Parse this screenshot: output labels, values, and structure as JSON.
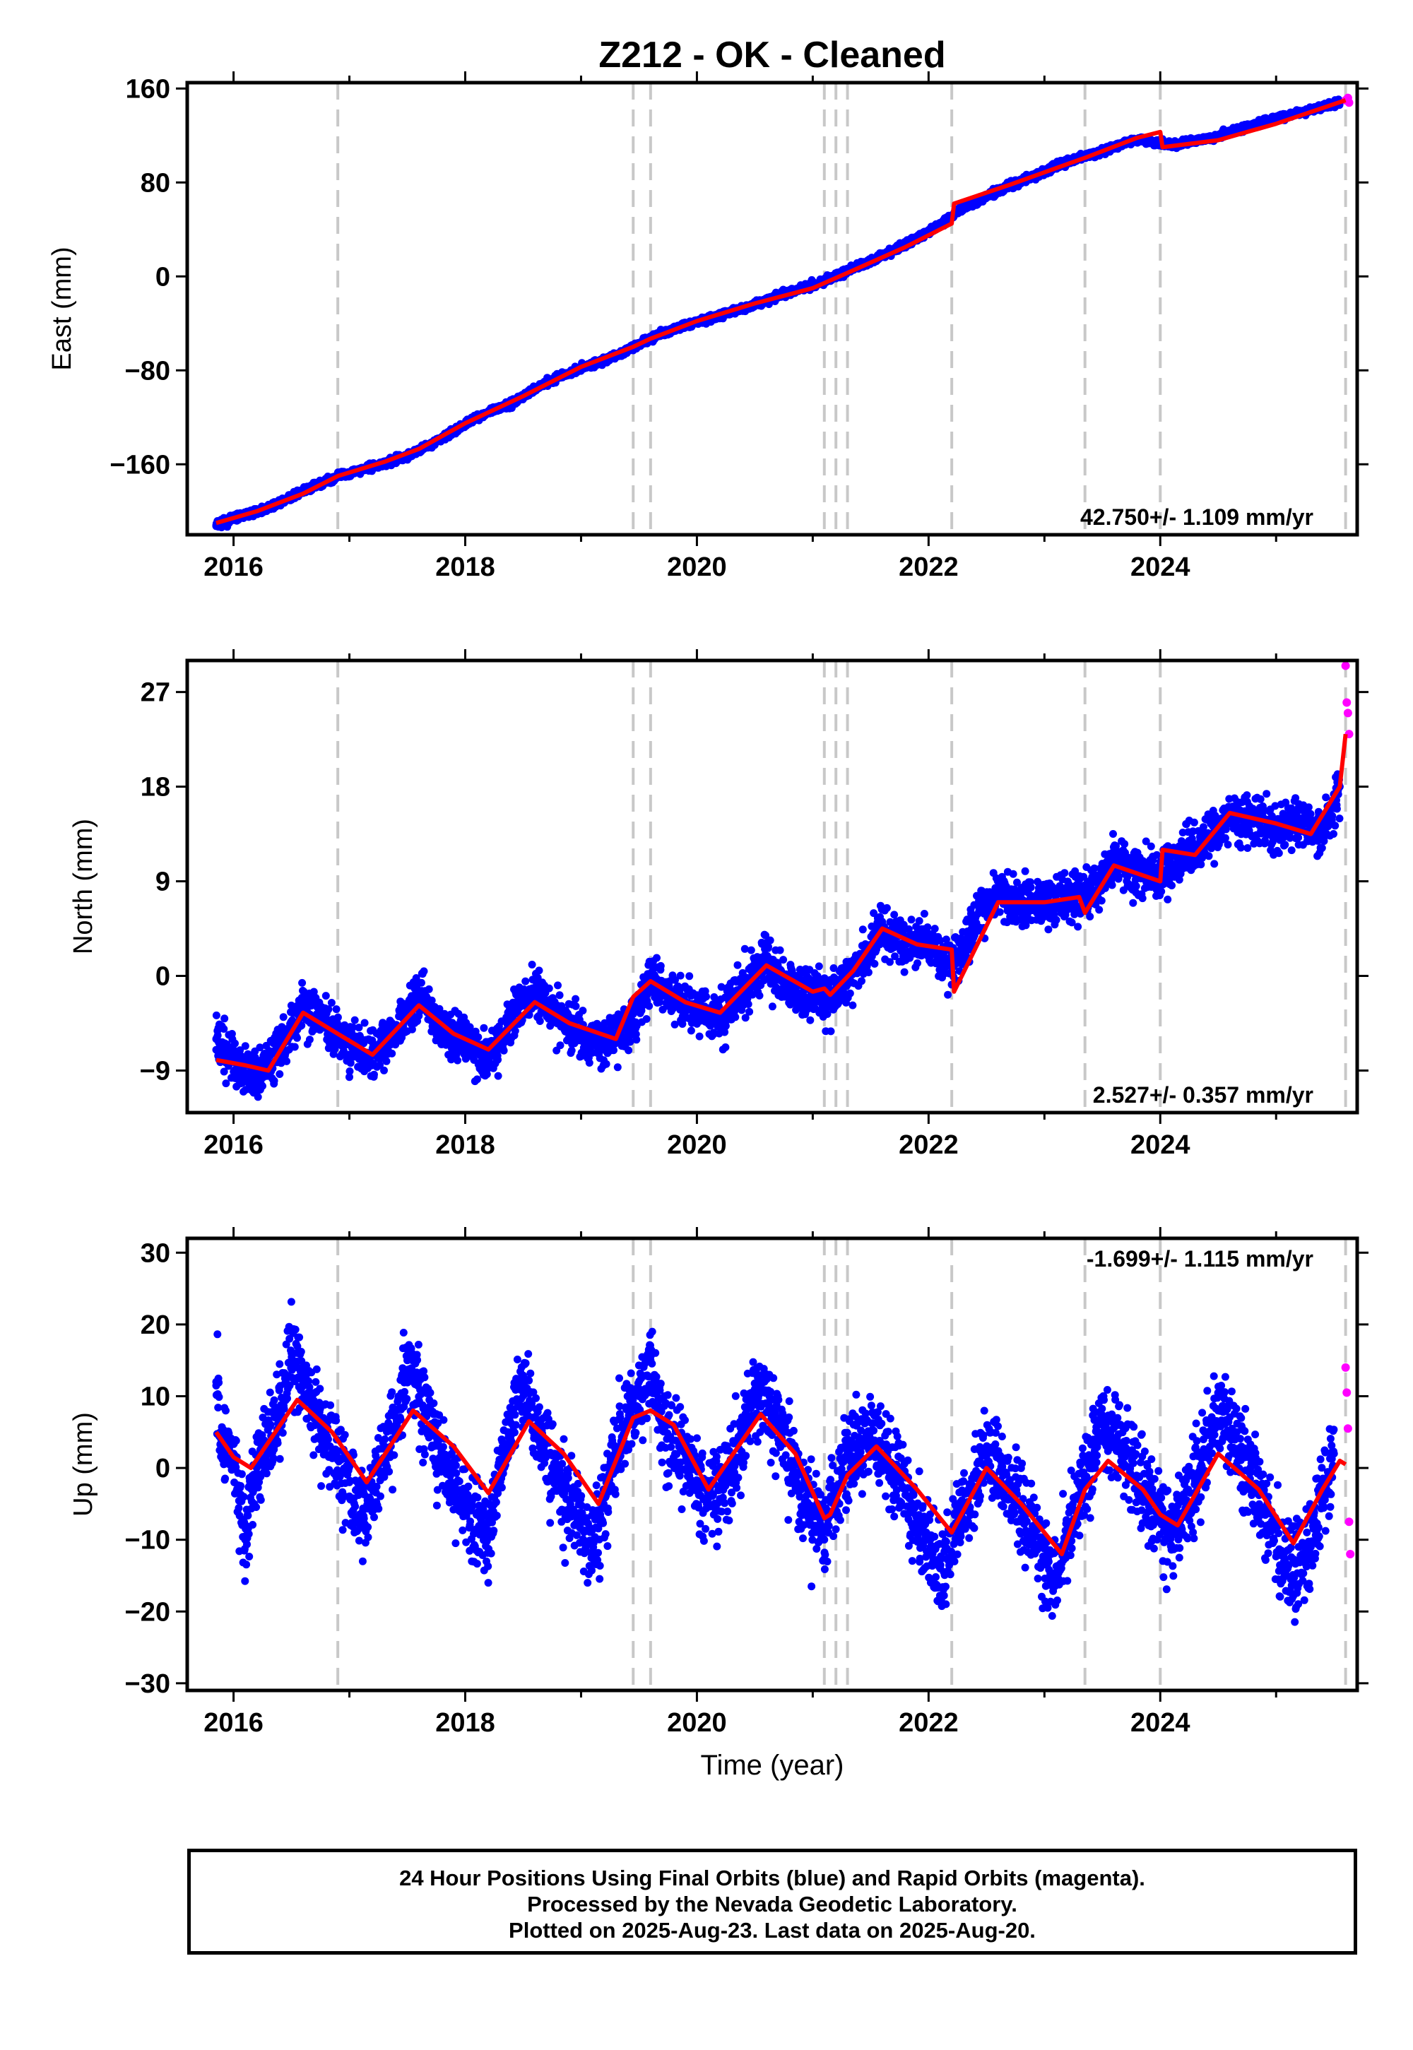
{
  "title": "Z212  - OK - Cleaned",
  "xlabel": "Time (year)",
  "caption": {
    "line1": "24 Hour Positions Using Final Orbits (blue) and Rapid Orbits (magenta).",
    "line2": "Processed by the Nevada Geodetic Laboratory.",
    "line3": "Plotted on 2025-Aug-23. Last data on 2025-Aug-20."
  },
  "colors": {
    "final": "#0000ff",
    "rapid": "#ff00ff",
    "model": "#ff0000",
    "steps": "#c8c8c8",
    "frame": "#000000"
  },
  "chart_data": [
    {
      "type": "scatter",
      "panel": "east",
      "ylabel": "East (mm)",
      "rate_label": "42.750+/- 1.109 mm/yr",
      "xlim": [
        2015.6,
        2025.7
      ],
      "ylim": [
        -220,
        165
      ],
      "yticks": [
        -160,
        -80,
        0,
        80,
        160
      ],
      "yticklabels": [
        "−160",
        "−80",
        "0",
        "80",
        "160"
      ],
      "xticks": [
        2016,
        2018,
        2020,
        2022,
        2024
      ],
      "xticklabels": [
        "2016",
        "2018",
        "2020",
        "2022",
        "2024"
      ],
      "equipment_changes": [
        2016.9,
        2019.45,
        2019.6,
        2021.1,
        2021.2,
        2021.3,
        2022.2,
        2023.35,
        2024.0,
        2025.6
      ],
      "model": {
        "x": [
          2015.85,
          2016.2,
          2016.6,
          2016.9,
          2017.3,
          2017.6,
          2018.0,
          2018.5,
          2019.0,
          2019.45,
          2019.6,
          2020.0,
          2020.5,
          2021.0,
          2021.3,
          2021.8,
          2022.2,
          2022.22,
          2022.7,
          2023.35,
          2023.8,
          2024.0,
          2024.02,
          2024.5,
          2025.0,
          2025.6
        ],
        "y": [
          -210,
          -200,
          -185,
          -170,
          -158,
          -147,
          -125,
          -102,
          -77,
          -60,
          -53,
          -38,
          -23,
          -10,
          3,
          25,
          45,
          62,
          78,
          101,
          118,
          123,
          110,
          116,
          130,
          150
        ]
      },
      "final": {
        "x": [
          2015.85,
          2016.0,
          2016.3,
          2016.6,
          2016.9,
          2017.2,
          2017.5,
          2017.8,
          2018.1,
          2018.4,
          2018.7,
          2019.0,
          2019.3,
          2019.6,
          2019.9,
          2020.2,
          2020.5,
          2020.8,
          2021.1,
          2021.4,
          2021.7,
          2022.0,
          2022.3,
          2022.6,
          2022.9,
          2023.2,
          2023.5,
          2023.8,
          2024.1,
          2024.4,
          2024.7,
          2025.0,
          2025.3,
          2025.55
        ],
        "y": [
          -212,
          -206,
          -197,
          -183,
          -170,
          -162,
          -153,
          -138,
          -120,
          -108,
          -90,
          -78,
          -68,
          -52,
          -42,
          -33,
          -24,
          -13,
          -4,
          9,
          22,
          38,
          58,
          73,
          85,
          98,
          107,
          117,
          112,
          117,
          126,
          135,
          142,
          148
        ]
      },
      "rapid": {
        "x": [
          2025.6,
          2025.62,
          2025.63
        ],
        "y": [
          150,
          152,
          148
        ]
      }
    },
    {
      "type": "scatter",
      "panel": "north",
      "ylabel": "North (mm)",
      "rate_label": "2.527+/- 0.357 mm/yr",
      "xlim": [
        2015.6,
        2025.7
      ],
      "ylim": [
        -13,
        30
      ],
      "yticks": [
        -9,
        0,
        9,
        18,
        27
      ],
      "yticklabels": [
        "−9",
        "0",
        "9",
        "18",
        "27"
      ],
      "xticks": [
        2016,
        2018,
        2020,
        2022,
        2024
      ],
      "xticklabels": [
        "2016",
        "2018",
        "2020",
        "2022",
        "2024"
      ],
      "equipment_changes": [
        2016.9,
        2019.45,
        2019.6,
        2021.1,
        2021.2,
        2021.3,
        2022.2,
        2023.35,
        2024.0,
        2025.6
      ],
      "model": {
        "x": [
          2015.85,
          2016.1,
          2016.3,
          2016.6,
          2016.9,
          2017.2,
          2017.6,
          2017.9,
          2018.2,
          2018.6,
          2018.9,
          2019.3,
          2019.45,
          2019.6,
          2019.9,
          2020.2,
          2020.6,
          2021.0,
          2021.1,
          2021.15,
          2021.35,
          2021.6,
          2021.9,
          2022.2,
          2022.22,
          2022.6,
          2023.0,
          2023.3,
          2023.35,
          2023.6,
          2024.0,
          2024.02,
          2024.3,
          2024.6,
          2025.0,
          2025.3,
          2025.55,
          2025.6
        ],
        "y": [
          -8,
          -8.5,
          -9,
          -3.5,
          -5.5,
          -7.5,
          -2.8,
          -5.5,
          -7,
          -2.5,
          -4.5,
          -6,
          -2,
          -0.5,
          -2.5,
          -3.5,
          1,
          -1.5,
          -1.2,
          -1.8,
          0.5,
          4.5,
          3,
          2.5,
          -1.5,
          7,
          7,
          7.5,
          6,
          10.5,
          9,
          12,
          11.5,
          15.5,
          14.5,
          13.5,
          18,
          23
        ]
      },
      "final": {
        "x": [
          2015.85,
          2016.0,
          2016.2,
          2016.4,
          2016.6,
          2016.8,
          2017.0,
          2017.2,
          2017.4,
          2017.6,
          2017.8,
          2018.0,
          2018.2,
          2018.4,
          2018.6,
          2018.8,
          2019.0,
          2019.2,
          2019.4,
          2019.6,
          2019.8,
          2020.0,
          2020.2,
          2020.4,
          2020.6,
          2020.8,
          2021.0,
          2021.2,
          2021.4,
          2021.6,
          2021.8,
          2022.0,
          2022.2,
          2022.4,
          2022.6,
          2022.8,
          2023.0,
          2023.2,
          2023.4,
          2023.6,
          2023.8,
          2024.0,
          2024.2,
          2024.4,
          2024.6,
          2024.8,
          2025.0,
          2025.2,
          2025.4,
          2025.55
        ],
        "y": [
          -6,
          -8,
          -9.5,
          -7,
          -3,
          -4.5,
          -6.5,
          -7.5,
          -5.5,
          -1.5,
          -5,
          -6,
          -8,
          -4,
          -1.5,
          -4,
          -5.5,
          -6.5,
          -5,
          -0.5,
          -2,
          -3.5,
          -4,
          -1,
          1.5,
          -1,
          -2,
          -1.5,
          1,
          4.5,
          3,
          3,
          1,
          5,
          8,
          7,
          7,
          7.5,
          7.5,
          11,
          10,
          9.5,
          12,
          12.5,
          15.5,
          15,
          14,
          14.5,
          13.5,
          18
        ]
      },
      "rapid": {
        "x": [
          2025.6,
          2025.61,
          2025.62,
          2025.63
        ],
        "y": [
          29.5,
          26,
          25,
          23
        ]
      }
    },
    {
      "type": "scatter",
      "panel": "up",
      "ylabel": "Up (mm)",
      "rate_label": "-1.699+/- 1.115 mm/yr",
      "xlim": [
        2015.6,
        2025.7
      ],
      "ylim": [
        -31,
        32
      ],
      "yticks": [
        -30,
        -20,
        -10,
        0,
        10,
        20,
        30
      ],
      "yticklabels": [
        "−30",
        "−20",
        "−10",
        "0",
        "10",
        "20",
        "30"
      ],
      "xticks": [
        2016,
        2018,
        2020,
        2022,
        2024
      ],
      "xticklabels": [
        "2016",
        "2018",
        "2020",
        "2022",
        "2024"
      ],
      "equipment_changes": [
        2016.9,
        2019.45,
        2019.6,
        2021.1,
        2021.2,
        2021.3,
        2022.2,
        2023.35,
        2024.0,
        2025.6
      ],
      "model": {
        "x": [
          2015.85,
          2016.0,
          2016.15,
          2016.55,
          2016.85,
          2017.15,
          2017.55,
          2017.9,
          2018.2,
          2018.55,
          2018.85,
          2019.15,
          2019.45,
          2019.6,
          2019.8,
          2020.1,
          2020.55,
          2020.85,
          2021.1,
          2021.15,
          2021.3,
          2021.55,
          2021.9,
          2022.2,
          2022.5,
          2022.8,
          2023.15,
          2023.35,
          2023.55,
          2023.85,
          2024.0,
          2024.15,
          2024.5,
          2024.85,
          2025.15,
          2025.4,
          2025.55,
          2025.6
        ],
        "y": [
          5,
          1.5,
          0,
          9.5,
          5,
          -2,
          8,
          3,
          -3.5,
          6.5,
          2,
          -5,
          7,
          8,
          6,
          -3,
          7.5,
          2,
          -7,
          -6.5,
          -1,
          3,
          -3,
          -9,
          0,
          -5,
          -12,
          -3,
          1,
          -3,
          -6.5,
          -8,
          2,
          -3,
          -10.5,
          -3,
          1,
          0.5
        ]
      },
      "final": {
        "x": [
          2015.85,
          2015.9,
          2016.0,
          2016.1,
          2016.2,
          2016.4,
          2016.5,
          2016.6,
          2016.8,
          2017.0,
          2017.1,
          2017.2,
          2017.4,
          2017.5,
          2017.6,
          2017.8,
          2018.0,
          2018.2,
          2018.3,
          2018.5,
          2018.6,
          2018.8,
          2019.0,
          2019.1,
          2019.3,
          2019.5,
          2019.6,
          2019.7,
          2019.9,
          2020.1,
          2020.3,
          2020.5,
          2020.7,
          2020.9,
          2021.1,
          2021.3,
          2021.5,
          2021.7,
          2021.9,
          2022.1,
          2022.3,
          2022.5,
          2022.7,
          2022.9,
          2023.1,
          2023.3,
          2023.5,
          2023.7,
          2023.9,
          2024.1,
          2024.3,
          2024.5,
          2024.7,
          2024.9,
          2025.1,
          2025.3,
          2025.5
        ],
        "y": [
          12,
          5,
          2,
          -10,
          0,
          8,
          16,
          12,
          4,
          -2,
          -8,
          -3,
          6,
          15,
          9,
          2,
          -6,
          -9,
          0,
          12,
          7,
          -2,
          -7,
          -12,
          3,
          10,
          15,
          6,
          1,
          -5,
          0,
          11,
          6,
          -3,
          -10,
          2,
          5,
          0,
          -8,
          -14,
          -6,
          3,
          -2,
          -9,
          -15,
          -4,
          6,
          2,
          -5,
          -9,
          -2,
          8,
          3,
          -6,
          -14,
          -11,
          2
        ]
      },
      "rapid": {
        "x": [
          2025.6,
          2025.61,
          2025.62,
          2025.63,
          2025.64
        ],
        "y": [
          14,
          10.5,
          5.5,
          -7.5,
          -12
        ]
      }
    }
  ]
}
